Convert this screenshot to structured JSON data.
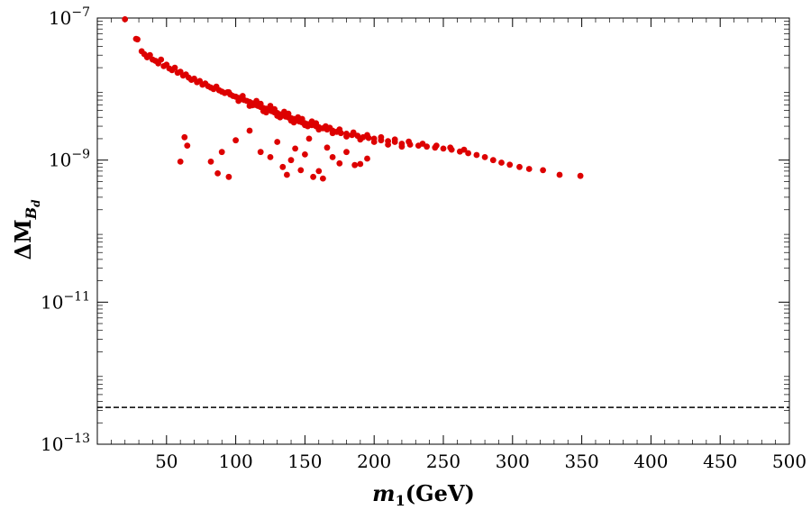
{
  "chart_data": {
    "type": "scatter",
    "title": "",
    "xlabel": {
      "main": "m",
      "sub": "1",
      "unit": "(GeV)"
    },
    "ylabel": {
      "main": "ΔM",
      "sub": "B",
      "subsub": "d"
    },
    "xlim": [
      0,
      500
    ],
    "ylim_log10": [
      -13,
      -7
    ],
    "y_scale": "log",
    "x_ticks": [
      50,
      100,
      150,
      200,
      250,
      300,
      350,
      400,
      450,
      500
    ],
    "y_ticks": [
      {
        "exp": -7,
        "base": "10",
        "sup": "−7"
      },
      {
        "exp": -9,
        "base": "10",
        "sup": "−9"
      },
      {
        "exp": -11,
        "base": "10",
        "sup": "−11"
      },
      {
        "exp": -13,
        "base": "10",
        "sup": "−13"
      }
    ],
    "reference_line": {
      "value": 3.3e-13,
      "style": "dashed",
      "color": "#000000"
    },
    "marker_color": "#dd0000",
    "series": [
      {
        "name": "points",
        "points": [
          [
            20,
            9.6e-08
          ],
          [
            28,
            5.1e-08
          ],
          [
            29,
            5e-08
          ],
          [
            32,
            3.4e-08
          ],
          [
            34,
            3.1e-08
          ],
          [
            36,
            2.8e-08
          ],
          [
            38,
            3e-08
          ],
          [
            40,
            2.6e-08
          ],
          [
            42,
            2.5e-08
          ],
          [
            44,
            2.3e-08
          ],
          [
            46,
            2.6e-08
          ],
          [
            48,
            2.1e-08
          ],
          [
            50,
            2.2e-08
          ],
          [
            52,
            1.95e-08
          ],
          [
            54,
            1.85e-08
          ],
          [
            56,
            2e-08
          ],
          [
            58,
            1.7e-08
          ],
          [
            60,
            1.75e-08
          ],
          [
            62,
            1.55e-08
          ],
          [
            64,
            1.6e-08
          ],
          [
            66,
            1.45e-08
          ],
          [
            68,
            1.35e-08
          ],
          [
            70,
            1.4e-08
          ],
          [
            72,
            1.25e-08
          ],
          [
            74,
            1.3e-08
          ],
          [
            76,
            1.15e-08
          ],
          [
            78,
            1.2e-08
          ],
          [
            80,
            1.1e-08
          ],
          [
            82,
            1.05e-08
          ],
          [
            84,
            1e-08
          ],
          [
            86,
            1.08e-08
          ],
          [
            88,
            9.6e-09
          ],
          [
            90,
            9.2e-09
          ],
          [
            92,
            8.8e-09
          ],
          [
            94,
            9e-09
          ],
          [
            96,
            8.4e-09
          ],
          [
            98,
            8e-09
          ],
          [
            100,
            7.8e-09
          ],
          [
            102,
            7.5e-09
          ],
          [
            104,
            7.3e-09
          ],
          [
            106,
            7e-09
          ],
          [
            108,
            6.8e-09
          ],
          [
            110,
            6.6e-09
          ],
          [
            112,
            6.3e-09
          ],
          [
            114,
            6e-09
          ],
          [
            116,
            5.8e-09
          ],
          [
            118,
            5.6e-09
          ],
          [
            120,
            5.4e-09
          ],
          [
            122,
            5.3e-09
          ],
          [
            124,
            5.1e-09
          ],
          [
            126,
            4.9e-09
          ],
          [
            128,
            4.7e-09
          ],
          [
            130,
            4.6e-09
          ],
          [
            132,
            4.4e-09
          ],
          [
            134,
            4.3e-09
          ],
          [
            136,
            4.1e-09
          ],
          [
            138,
            4e-09
          ],
          [
            140,
            3.9e-09
          ],
          [
            142,
            3.8e-09
          ],
          [
            144,
            3.6e-09
          ],
          [
            146,
            3.5e-09
          ],
          [
            148,
            3.4e-09
          ],
          [
            150,
            3.3e-09
          ],
          [
            152,
            3.2e-09
          ],
          [
            155,
            3.1e-09
          ],
          [
            158,
            3e-09
          ],
          [
            160,
            2.9e-09
          ],
          [
            163,
            2.8e-09
          ],
          [
            166,
            2.7e-09
          ],
          [
            170,
            2.6e-09
          ],
          [
            173,
            2.5e-09
          ],
          [
            176,
            2.4e-09
          ],
          [
            180,
            2.35e-09
          ],
          [
            184,
            2.25e-09
          ],
          [
            188,
            2.2e-09
          ],
          [
            192,
            2.1e-09
          ],
          [
            196,
            2.05e-09
          ],
          [
            200,
            2e-09
          ],
          [
            205,
            1.9e-09
          ],
          [
            210,
            1.85e-09
          ],
          [
            215,
            1.8e-09
          ],
          [
            220,
            1.7e-09
          ],
          [
            226,
            1.65e-09
          ],
          [
            232,
            1.6e-09
          ],
          [
            238,
            1.55e-09
          ],
          [
            244,
            1.5e-09
          ],
          [
            250,
            1.45e-09
          ],
          [
            256,
            1.4e-09
          ],
          [
            262,
            1.32e-09
          ],
          [
            268,
            1.25e-09
          ],
          [
            274,
            1.18e-09
          ],
          [
            280,
            1.1e-09
          ],
          [
            286,
            1e-09
          ],
          [
            292,
            9.2e-10
          ],
          [
            298,
            8.6e-10
          ],
          [
            305,
            8e-10
          ],
          [
            312,
            7.5e-10
          ],
          [
            322,
            7.2e-10
          ],
          [
            334,
            6.2e-10
          ],
          [
            349,
            6e-10
          ],
          [
            95,
            9e-09
          ],
          [
            105,
            8e-09
          ],
          [
            115,
            6.8e-09
          ],
          [
            125,
            5.8e-09
          ],
          [
            135,
            4.8e-09
          ],
          [
            145,
            4e-09
          ],
          [
            155,
            3.5e-09
          ],
          [
            165,
            3e-09
          ],
          [
            175,
            2.7e-09
          ],
          [
            185,
            2.45e-09
          ],
          [
            195,
            2.25e-09
          ],
          [
            205,
            2.1e-09
          ],
          [
            215,
            1.95e-09
          ],
          [
            225,
            1.82e-09
          ],
          [
            235,
            1.7e-09
          ],
          [
            245,
            1.6e-09
          ],
          [
            255,
            1.5e-09
          ],
          [
            265,
            1.4e-09
          ],
          [
            110,
            5.8e-09
          ],
          [
            120,
            4.9e-09
          ],
          [
            130,
            4.2e-09
          ],
          [
            140,
            3.6e-09
          ],
          [
            150,
            3.1e-09
          ],
          [
            160,
            2.7e-09
          ],
          [
            170,
            2.4e-09
          ],
          [
            180,
            2.15e-09
          ],
          [
            190,
            1.95e-09
          ],
          [
            200,
            1.8e-09
          ],
          [
            210,
            1.65e-09
          ],
          [
            220,
            1.55e-09
          ],
          [
            118,
            6.2e-09
          ],
          [
            128,
            5.2e-09
          ],
          [
            138,
            4.5e-09
          ],
          [
            148,
            3.8e-09
          ],
          [
            158,
            3.3e-09
          ],
          [
            168,
            2.85e-09
          ],
          [
            102,
            6.8e-09
          ],
          [
            112,
            5.9e-09
          ],
          [
            122,
            4.7e-09
          ],
          [
            132,
            4e-09
          ],
          [
            142,
            3.4e-09
          ],
          [
            152,
            3e-09
          ],
          [
            60,
            9.5e-10
          ],
          [
            63,
            2.1e-09
          ],
          [
            65,
            1.6e-09
          ],
          [
            82,
            9.5e-10
          ],
          [
            87,
            6.5e-10
          ],
          [
            90,
            1.3e-09
          ],
          [
            95,
            5.8e-10
          ],
          [
            100,
            1.9e-09
          ],
          [
            110,
            2.6e-09
          ],
          [
            118,
            1.3e-09
          ],
          [
            125,
            1.1e-09
          ],
          [
            130,
            1.8e-09
          ],
          [
            134,
            8e-10
          ],
          [
            137,
            6.2e-10
          ],
          [
            140,
            1e-09
          ],
          [
            143,
            1.45e-09
          ],
          [
            147,
            7.2e-10
          ],
          [
            150,
            1.2e-09
          ],
          [
            153,
            2e-09
          ],
          [
            156,
            5.8e-10
          ],
          [
            160,
            7e-10
          ],
          [
            163,
            5.5e-10
          ],
          [
            166,
            1.5e-09
          ],
          [
            170,
            1.1e-09
          ],
          [
            175,
            9e-10
          ],
          [
            180,
            1.3e-09
          ],
          [
            186,
            8.5e-10
          ],
          [
            190,
            8.8e-10
          ],
          [
            195,
            1.05e-09
          ]
        ]
      }
    ]
  }
}
